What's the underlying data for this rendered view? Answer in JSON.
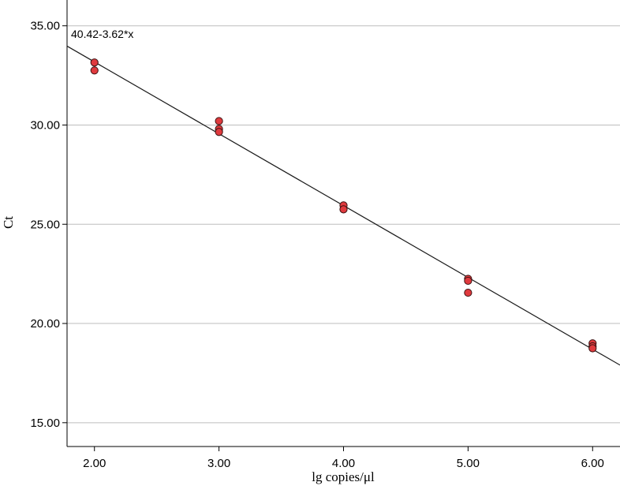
{
  "chart_data": {
    "type": "scatter",
    "title": "",
    "xlabel": "lg copies/μl",
    "ylabel": "Ct",
    "xlim": [
      1.78,
      6.22
    ],
    "ylim": [
      13.8,
      36.3
    ],
    "xticks": [
      2,
      3,
      4,
      5,
      6
    ],
    "yticks": [
      15,
      20,
      25,
      30,
      35
    ],
    "xtick_labels": [
      "2.00",
      "3.00",
      "4.00",
      "5.00",
      "6.00"
    ],
    "ytick_labels": [
      "15.00",
      "20.00",
      "25.00",
      "30.00",
      "35.00"
    ],
    "grid": "horizontal",
    "legend": "none",
    "fit_line": {
      "equation_label": "40.42-3.62*x",
      "intercept": 40.42,
      "slope": -3.62
    },
    "points": [
      {
        "x": 2,
        "y": 33.15
      },
      {
        "x": 2,
        "y": 32.75
      },
      {
        "x": 3,
        "y": 30.2
      },
      {
        "x": 3,
        "y": 29.8
      },
      {
        "x": 3,
        "y": 29.65
      },
      {
        "x": 4,
        "y": 25.95
      },
      {
        "x": 4,
        "y": 25.75
      },
      {
        "x": 5,
        "y": 22.25
      },
      {
        "x": 5,
        "y": 22.15
      },
      {
        "x": 5,
        "y": 21.55
      },
      {
        "x": 6,
        "y": 19.0
      },
      {
        "x": 6,
        "y": 18.85
      },
      {
        "x": 6,
        "y": 18.75
      }
    ],
    "colors": {
      "point_fill": "#e03a3e",
      "point_stroke": "#3a1212",
      "grid": "#bdbdbd",
      "line": "#1a1a1a"
    }
  }
}
